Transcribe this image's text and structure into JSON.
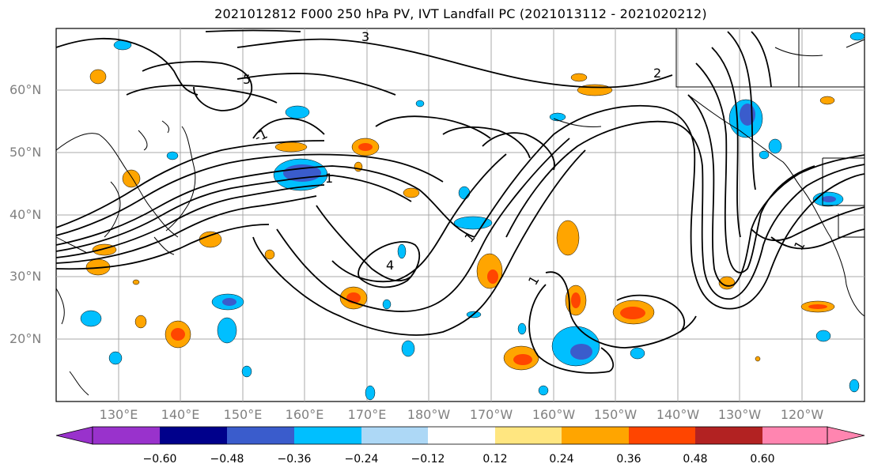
{
  "title": "2021012812 F000 250 hPa PV, IVT Landfall PC (2021013112 - 2021020212)",
  "lat_labels": [
    "60°N",
    "50°N",
    "40°N",
    "30°N",
    "20°N"
  ],
  "lon_labels": [
    "130°E",
    "140°E",
    "150°E",
    "160°E",
    "170°E",
    "180°W",
    "170°W",
    "160°W",
    "150°W",
    "140°W",
    "130°W",
    "120°W"
  ],
  "contour_labels": [
    "-1",
    "1",
    "4",
    "2",
    "3",
    "5",
    "1",
    "1",
    "1"
  ],
  "colorbar": {
    "tick_labels": [
      "−0.60",
      "−0.48",
      "−0.36",
      "−0.24",
      "−0.12",
      "0.12",
      "0.24",
      "0.36",
      "0.48",
      "0.60"
    ],
    "colors": [
      "#9932cc",
      "#00008b",
      "#3a5ccc",
      "#00bfff",
      "#add8f6",
      "#ffffff",
      "#ffe680",
      "#ffa500",
      "#ff4500",
      "#b22222",
      "#ff85b0"
    ]
  },
  "colors": {
    "contour": "#000000",
    "grid": "#a9a9a9",
    "tick_label": "#808080"
  }
}
